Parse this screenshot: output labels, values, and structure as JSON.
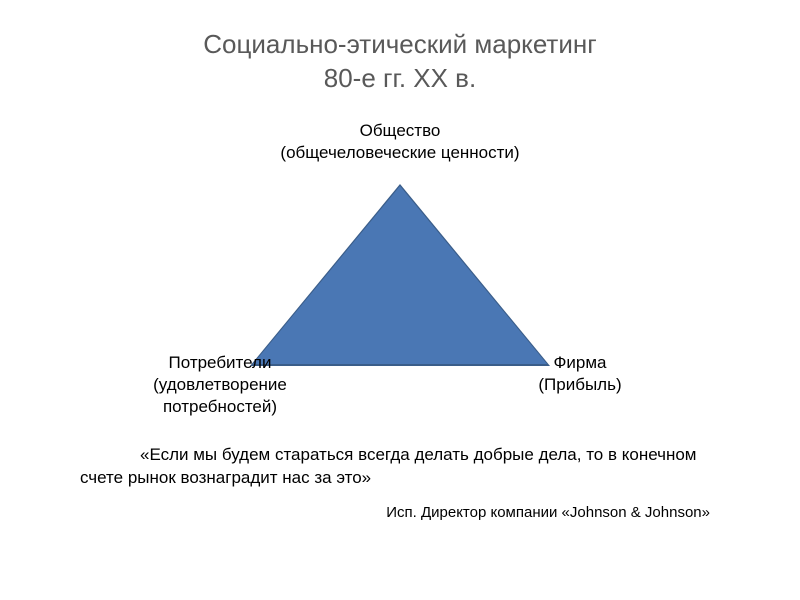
{
  "title": {
    "line1": "Социально-этический маркетинг",
    "line2": "80-е гг. XX в.",
    "color": "#595959",
    "fontsize": 26
  },
  "diagram": {
    "type": "triangle",
    "fill_color": "#4a77b4",
    "border_color": "#3a5d89",
    "apex_top": {
      "title": "Общество",
      "subtitle": "(общечеловеческие ценности)"
    },
    "apex_left": {
      "title": "Потребители",
      "subtitle": "(удовлетворение потребностей)"
    },
    "apex_right": {
      "title": "Фирма",
      "subtitle": "(Прибыль)"
    },
    "label_fontsize": 17,
    "label_color": "#000000"
  },
  "quote": {
    "text": "«Если мы будем стараться всегда делать добрые дела, то в конечном счете рынок вознаградит нас за это»",
    "attribution": "Исп. Директор компании «Johnson & Johnson»",
    "fontsize": 17,
    "attrib_fontsize": 15,
    "color": "#000000"
  },
  "background_color": "#ffffff"
}
